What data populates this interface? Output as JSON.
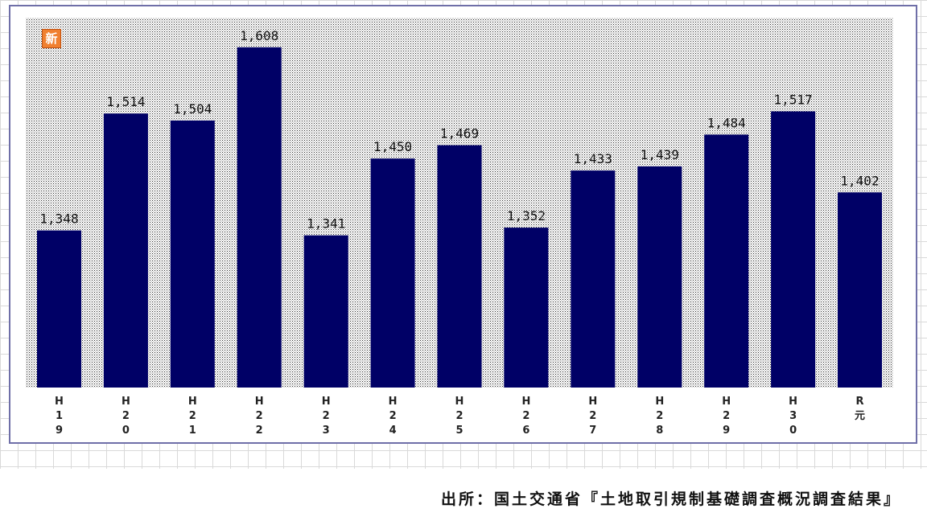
{
  "badge": {
    "icon": "new-badge-icon",
    "text": "新",
    "color": "#f08030"
  },
  "source": "出所：国土交通省『土地取引規制基礎調査概況調査結果』",
  "chart_data": {
    "type": "bar",
    "categories": [
      "H19",
      "H20",
      "H21",
      "H22",
      "H23",
      "H24",
      "H25",
      "H26",
      "H27",
      "H28",
      "H29",
      "H30",
      "R元"
    ],
    "category_labels": [
      [
        "H",
        "1",
        "9"
      ],
      [
        "H",
        "2",
        "0"
      ],
      [
        "H",
        "2",
        "1"
      ],
      [
        "H",
        "2",
        "2"
      ],
      [
        "H",
        "2",
        "3"
      ],
      [
        "H",
        "2",
        "4"
      ],
      [
        "H",
        "2",
        "5"
      ],
      [
        "H",
        "2",
        "6"
      ],
      [
        "H",
        "2",
        "7"
      ],
      [
        "H",
        "2",
        "8"
      ],
      [
        "H",
        "2",
        "9"
      ],
      [
        "H",
        "3",
        "0"
      ],
      [
        "R",
        "元"
      ]
    ],
    "values": [
      1348,
      1514,
      1504,
      1608,
      1341,
      1450,
      1469,
      1352,
      1433,
      1439,
      1484,
      1517,
      1402
    ],
    "value_labels": [
      "1,348",
      "1,514",
      "1,504",
      "1,608",
      "1,341",
      "1,450",
      "1,469",
      "1,352",
      "1,433",
      "1,439",
      "1,484",
      "1,517",
      "1,402"
    ],
    "ylim": [
      1125,
      1650
    ],
    "bar_color": "#000066",
    "grid": false,
    "legend": "none"
  }
}
